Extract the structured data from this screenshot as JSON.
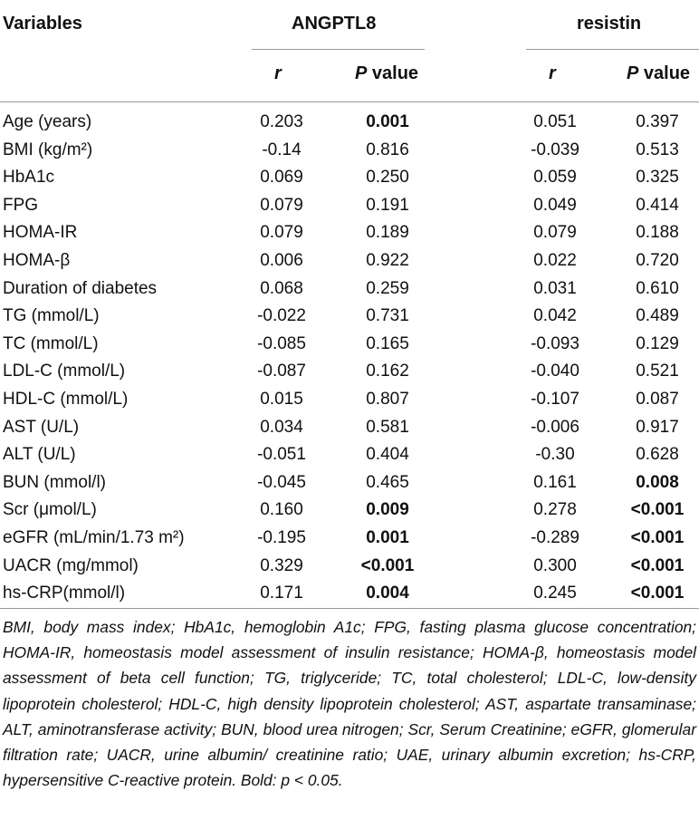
{
  "header": {
    "variables": "Variables",
    "group1": "ANGPTL8",
    "group2": "resistin",
    "r": "r",
    "p_prefix": "P",
    "p_suffix": " value"
  },
  "rows": [
    {
      "variable": "Age (years)",
      "a_r": "0.203",
      "a_p": "0.001",
      "a_bold": true,
      "r_r": "0.051",
      "r_p": "0.397",
      "r_bold": false
    },
    {
      "variable": "BMI (kg/m²)",
      "a_r": "-0.14",
      "a_p": "0.816",
      "a_bold": false,
      "r_r": "-0.039",
      "r_p": "0.513",
      "r_bold": false
    },
    {
      "variable": "HbA1c",
      "a_r": "0.069",
      "a_p": "0.250",
      "a_bold": false,
      "r_r": "0.059",
      "r_p": "0.325",
      "r_bold": false
    },
    {
      "variable": "FPG",
      "a_r": "0.079",
      "a_p": "0.191",
      "a_bold": false,
      "r_r": "0.049",
      "r_p": "0.414",
      "r_bold": false
    },
    {
      "variable": "HOMA-IR",
      "a_r": "0.079",
      "a_p": "0.189",
      "a_bold": false,
      "r_r": "0.079",
      "r_p": "0.188",
      "r_bold": false
    },
    {
      "variable": "HOMA-β",
      "a_r": "0.006",
      "a_p": "0.922",
      "a_bold": false,
      "r_r": "0.022",
      "r_p": "0.720",
      "r_bold": false
    },
    {
      "variable": "Duration of diabetes",
      "a_r": "0.068",
      "a_p": "0.259",
      "a_bold": false,
      "r_r": "0.031",
      "r_p": "0.610",
      "r_bold": false
    },
    {
      "variable": "TG (mmol/L)",
      "a_r": "-0.022",
      "a_p": "0.731",
      "a_bold": false,
      "r_r": "0.042",
      "r_p": "0.489",
      "r_bold": false
    },
    {
      "variable": "TC (mmol/L)",
      "a_r": "-0.085",
      "a_p": "0.165",
      "a_bold": false,
      "r_r": "-0.093",
      "r_p": "0.129",
      "r_bold": false
    },
    {
      "variable": "LDL-C (mmol/L)",
      "a_r": "-0.087",
      "a_p": "0.162",
      "a_bold": false,
      "r_r": "-0.040",
      "r_p": "0.521",
      "r_bold": false
    },
    {
      "variable": "HDL-C (mmol/L)",
      "a_r": "0.015",
      "a_p": "0.807",
      "a_bold": false,
      "r_r": "-0.107",
      "r_p": "0.087",
      "r_bold": false
    },
    {
      "variable": "AST (U/L)",
      "a_r": "0.034",
      "a_p": "0.581",
      "a_bold": false,
      "r_r": "-0.006",
      "r_p": "0.917",
      "r_bold": false
    },
    {
      "variable": "ALT (U/L)",
      "a_r": "-0.051",
      "a_p": "0.404",
      "a_bold": false,
      "r_r": "-0.30",
      "r_p": "0.628",
      "r_bold": false
    },
    {
      "variable": "BUN (mmol/l)",
      "a_r": "-0.045",
      "a_p": "0.465",
      "a_bold": false,
      "r_r": "0.161",
      "r_p": "0.008",
      "r_bold": true
    },
    {
      "variable": "Scr (μmol/L)",
      "a_r": "0.160",
      "a_p": "0.009",
      "a_bold": true,
      "r_r": "0.278",
      "r_p": "<0.001",
      "r_bold": true
    },
    {
      "variable": "eGFR (mL/min/1.73 m²)",
      "a_r": "-0.195",
      "a_p": "0.001",
      "a_bold": true,
      "r_r": "-0.289",
      "r_p": "<0.001",
      "r_bold": true
    },
    {
      "variable": "UACR (mg/mmol)",
      "a_r": "0.329",
      "a_p": "<0.001",
      "a_bold": true,
      "r_r": "0.300",
      "r_p": "<0.001",
      "r_bold": true
    },
    {
      "variable": "hs-CRP(mmol/l)",
      "a_r": "0.171",
      "a_p": "0.004",
      "a_bold": true,
      "r_r": "0.245",
      "r_p": "<0.001",
      "r_bold": true
    }
  ],
  "footnote": "BMI, body mass index; HbA1c, hemoglobin A1c; FPG, fasting plasma glucose concentration; HOMA-IR, homeostasis model assessment of insulin resistance; HOMA-β, homeostasis model assessment of beta cell function; TG, triglyceride; TC, total cholesterol; LDL-C, low-density lipoprotein cholesterol; HDL-C, high density lipoprotein cholesterol; AST, aspartate transaminase; ALT, aminotransferase activity; BUN, blood urea nitrogen; Scr, Serum Creatinine; eGFR, glomerular filtration rate; UACR, urine albumin/ creatinine ratio; UAE, urinary albumin excretion; hs-CRP, hypersensitive C-reactive protein. Bold: p < 0.05."
}
